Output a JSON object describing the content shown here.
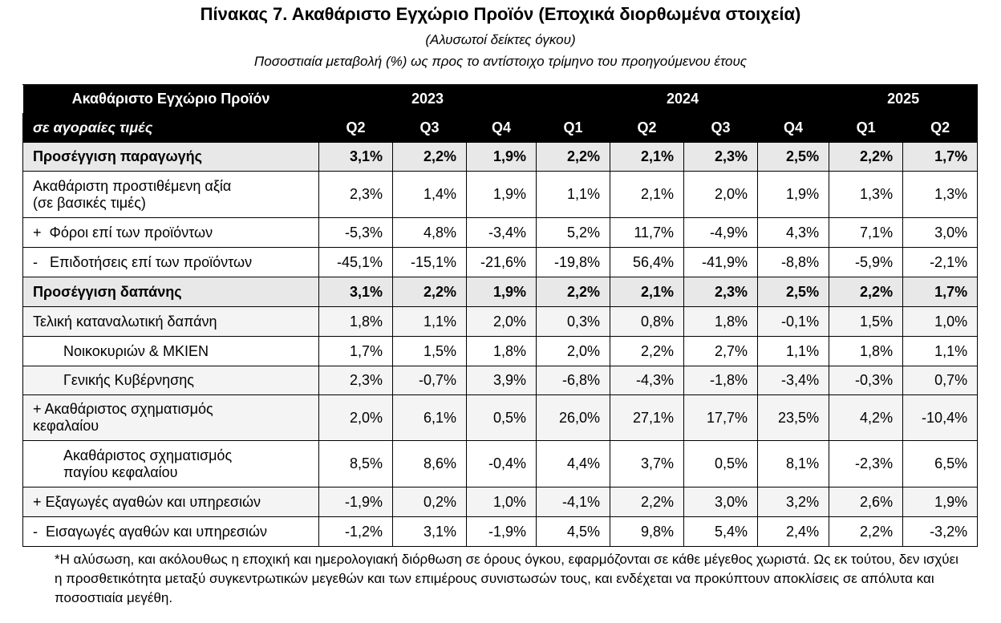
{
  "title": "Πίνακας 7. Ακαθάριστο Εγχώριο Προϊόν (Εποχικά διορθωμένα στοιχεία)",
  "subtitle1": "(Αλυσωτοί δείκτες όγκου)",
  "subtitle2": "Ποσοστιαία μεταβολή (%) ως προς το αντίστοιχο τρίμηνο  του προηγούμενου έτους",
  "header": {
    "label_main": "Ακαθάριστο Εγχώριο Προϊόν",
    "label_sub": "σε αγοραίες τιμές",
    "years": [
      "2023",
      "2024",
      "2025"
    ],
    "quarters": [
      "Q2",
      "Q3",
      "Q4",
      "Q1",
      "Q2",
      "Q3",
      "Q4",
      "Q1",
      "Q2"
    ]
  },
  "rows": [
    {
      "label": "Προσέγγιση παραγωγής",
      "values": [
        "3,1%",
        "2,2%",
        "1,9%",
        "2,2%",
        "2,1%",
        "2,3%",
        "2,5%",
        "2,2%",
        "1,7%"
      ]
    },
    {
      "label": "Ακαθάριστη προστιθέμενη αξία",
      "label2": "(σε βασικές τιμές)",
      "values": [
        "2,3%",
        "1,4%",
        "1,9%",
        "1,1%",
        "2,1%",
        "2,0%",
        "1,9%",
        "1,3%",
        "1,3%"
      ]
    },
    {
      "label": "+  Φόροι επί των προϊόντων",
      "values": [
        "-5,3%",
        "4,8%",
        "-3,4%",
        "5,2%",
        "11,7%",
        "-4,9%",
        "4,3%",
        "7,1%",
        "3,0%"
      ]
    },
    {
      "label": "-   Επιδοτήσεις επί των προϊόντων",
      "values": [
        "-45,1%",
        "-15,1%",
        "-21,6%",
        "-19,8%",
        "56,4%",
        "-41,9%",
        "-8,8%",
        "-5,9%",
        "-2,1%"
      ]
    },
    {
      "label": "Προσέγγιση δαπάνης",
      "values": [
        "3,1%",
        "2,2%",
        "1,9%",
        "2,2%",
        "2,1%",
        "2,3%",
        "2,5%",
        "2,2%",
        "1,7%"
      ]
    },
    {
      "label": "Τελική καταναλωτική δαπάνη",
      "values": [
        "1,8%",
        "1,1%",
        "2,0%",
        "0,3%",
        "0,8%",
        "1,8%",
        "-0,1%",
        "1,5%",
        "1,0%"
      ]
    },
    {
      "label": "Νοικοκυριών & ΜΚΙΕΝ",
      "values": [
        "1,7%",
        "1,5%",
        "1,8%",
        "2,0%",
        "2,2%",
        "2,7%",
        "1,1%",
        "1,8%",
        "1,1%"
      ]
    },
    {
      "label": "Γενικής Κυβέρνησης",
      "values": [
        "2,3%",
        "-0,7%",
        "3,9%",
        "-6,8%",
        "-4,3%",
        "-1,8%",
        "-3,4%",
        "-0,3%",
        "0,7%"
      ]
    },
    {
      "label": "+ Ακαθάριστος σχηματισμός",
      "label2": "κεφαλαίου",
      "values": [
        "2,0%",
        "6,1%",
        "0,5%",
        "26,0%",
        "27,1%",
        "17,7%",
        "23,5%",
        "4,2%",
        "-10,4%"
      ]
    },
    {
      "label": "Ακαθάριστος σχηματισμός",
      "label2": "παγίου κεφαλαίου",
      "values": [
        "8,5%",
        "8,6%",
        "-0,4%",
        "4,4%",
        "3,7%",
        "0,5%",
        "8,1%",
        "-2,3%",
        "6,5%"
      ]
    },
    {
      "label": "+ Εξαγωγές αγαθών και υπηρεσιών",
      "values": [
        "-1,9%",
        "0,2%",
        "1,0%",
        "-4,1%",
        "2,2%",
        "3,0%",
        "3,2%",
        "2,6%",
        "1,9%"
      ]
    },
    {
      "label": "-  Εισαγωγές αγαθών και υπηρεσιών",
      "values": [
        "-1,2%",
        "3,1%",
        "-1,9%",
        "4,5%",
        "9,8%",
        "5,4%",
        "2,4%",
        "2,2%",
        "-3,2%"
      ]
    }
  ],
  "footnote": "*Η αλύσωση, και ακόλουθως η εποχική και ημερολογιακή διόρθωση σε όρους όγκου, εφαρμόζονται σε κάθε μέγεθος χωριστά. Ως εκ τούτου, δεν ισχύει η προσθετικότητα μεταξύ συγκεντρωτικών μεγεθών και των επιμέρους συνιστωσών τους, και ενδέχεται να προκύπτουν  αποκλίσεις σε απόλυτα και ποσοστιαία μεγέθη."
}
